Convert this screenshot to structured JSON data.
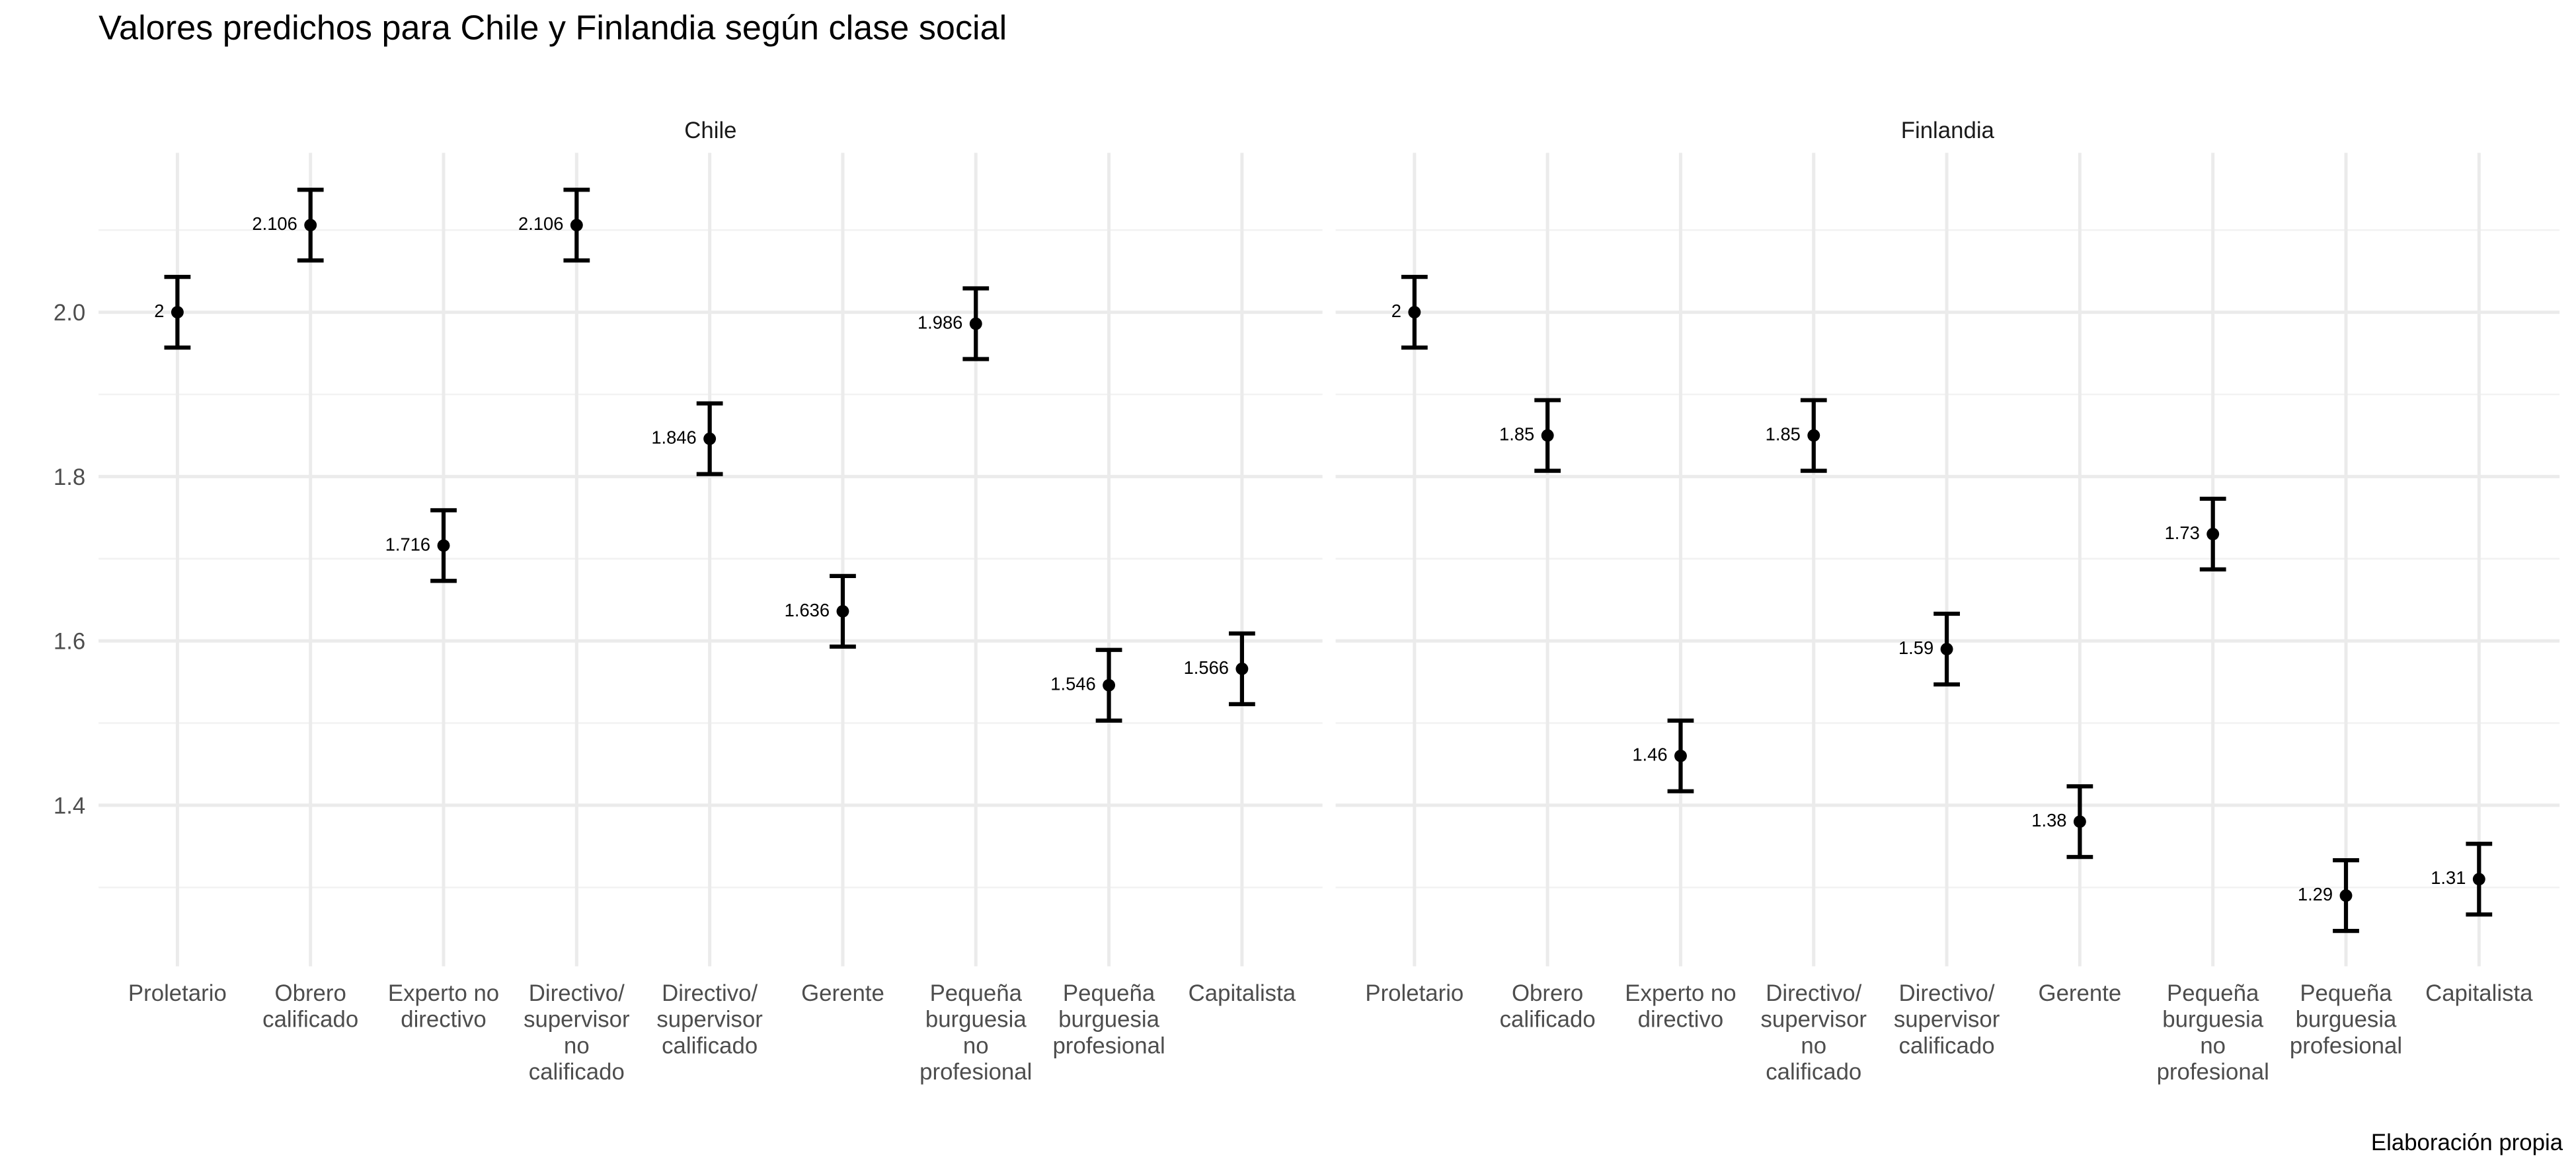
{
  "title": "Valores predichos para Chile y Finlandia según clase social",
  "caption": "Elaboración propia",
  "chart_data": [
    {
      "type": "errorbar",
      "title": "Chile",
      "categories": [
        "Proletario",
        "Obrero\ncalificado",
        "Experto no\ndirectivo",
        "Directivo/\nsupervisor\nno\ncalificado",
        "Directivo/\nsupervisor\ncalificado",
        "Gerente",
        "Pequeña\nburguesia\nno\nprofesional",
        "Pequeña\nburguesia\nprofesional",
        "Capitalista"
      ],
      "values": [
        2,
        2.106,
        1.716,
        2.106,
        1.846,
        1.636,
        1.986,
        1.546,
        1.566
      ],
      "errors": [
        0.043,
        0.043,
        0.043,
        0.043,
        0.043,
        0.043,
        0.043,
        0.043,
        0.043
      ],
      "color": "#000000",
      "ylim": [
        1.204,
        2.194
      ],
      "yticks": [
        1.4,
        1.6,
        1.8,
        {
          "value": 2,
          "label": "2.0"
        }
      ],
      "minor_yticks": [
        1.3,
        1.5,
        1.7,
        1.9,
        2.1
      ],
      "grid": true
    },
    {
      "type": "errorbar",
      "title": "Finlandia",
      "categories": [
        "Proletario",
        "Obrero\ncalificado",
        "Experto no\ndirectivo",
        "Directivo/\nsupervisor\nno\ncalificado",
        "Directivo/\nsupervisor\ncalificado",
        "Gerente",
        "Pequeña\nburguesia\nno\nprofesional",
        "Pequeña\nburguesia\nprofesional",
        "Capitalista"
      ],
      "values": [
        2,
        1.85,
        1.46,
        1.85,
        1.59,
        1.38,
        1.73,
        1.29,
        1.31
      ],
      "errors": [
        0.043,
        0.043,
        0.043,
        0.043,
        0.043,
        0.043,
        0.043,
        0.043,
        0.043
      ],
      "color": "#000000",
      "ylim": [
        1.204,
        2.194
      ],
      "yticks": [
        1.4,
        1.6,
        1.8,
        {
          "value": 2,
          "label": "2.0"
        }
      ],
      "minor_yticks": [
        1.3,
        1.5,
        1.7,
        1.9,
        2.1
      ],
      "grid": true
    }
  ]
}
